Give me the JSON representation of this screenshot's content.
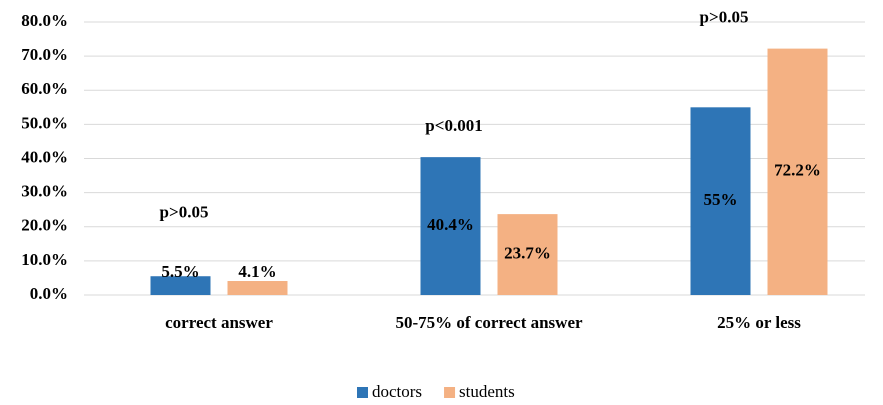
{
  "chart_data": {
    "type": "bar",
    "categories": [
      "correct answer",
      "50-75% of correct answer",
      "25% or less"
    ],
    "series": [
      {
        "name": "doctors",
        "color": "#2e75b6",
        "values": [
          5.5,
          40.4,
          55
        ],
        "value_labels": [
          "5.5%",
          "40.4%",
          "55%"
        ]
      },
      {
        "name": "students",
        "color": "#f4b183",
        "values": [
          4.1,
          23.7,
          72.2
        ],
        "value_labels": [
          "4.1%",
          "23.7%",
          "72.2%"
        ]
      }
    ],
    "annotations": [
      "p>0.05",
      "p<0.001",
      "p>0.05"
    ],
    "ylim": [
      0,
      80
    ],
    "yticks": [
      {
        "value": 0,
        "label": "0.0%"
      },
      {
        "value": 10,
        "label": "10.0%"
      },
      {
        "value": 20,
        "label": "20.0%"
      },
      {
        "value": 30,
        "label": "30.0%"
      },
      {
        "value": 40,
        "label": "40.0%"
      },
      {
        "value": 50,
        "label": "50.0%"
      },
      {
        "value": 60,
        "label": "60.0%"
      },
      {
        "value": 70,
        "label": "70.0%"
      },
      {
        "value": 80,
        "label": "80.0%"
      }
    ],
    "grid": true,
    "legend": "bottom"
  }
}
